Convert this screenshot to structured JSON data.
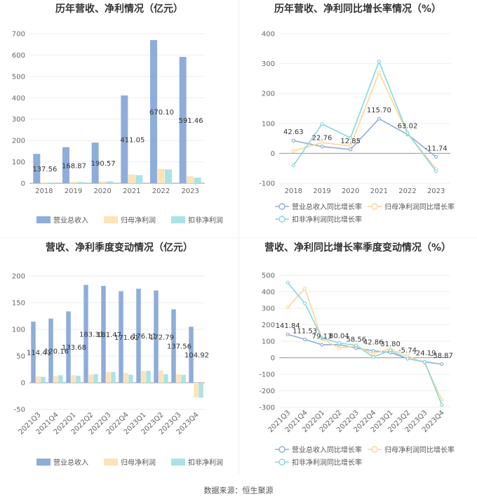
{
  "colors": {
    "rev": "#8eaddb",
    "np": "#fde3b5",
    "dnp": "#a9e3e6",
    "rev_line": "#8eaddb",
    "np_line": "#fcd699",
    "dnp_line": "#86d8dc",
    "grid": "#eeeeee",
    "axis": "#999999"
  },
  "source_label": "数据来源：恒生聚源",
  "chart_data": [
    {
      "type": "bar",
      "title": "历年营收、净利情况（亿元）",
      "categories": [
        "2018",
        "2019",
        "2020",
        "2021",
        "2022",
        "2023"
      ],
      "ylim": [
        0,
        700
      ],
      "yticks": [
        0,
        100,
        200,
        300,
        400,
        500,
        600,
        700
      ],
      "series": [
        {
          "name": "营业总收入",
          "values": [
            137.56,
            168.87,
            190.57,
            411.05,
            670.1,
            591.46
          ],
          "labels": [
            "137.56",
            "168.87",
            "190.57",
            "411.05",
            "670.10",
            "591.46"
          ]
        },
        {
          "name": "归母净利润",
          "values": [
            4,
            7,
            9,
            41,
            68,
            33
          ]
        },
        {
          "name": "扣非净利润",
          "values": [
            4,
            6,
            9,
            38,
            65,
            26
          ]
        }
      ]
    },
    {
      "type": "line",
      "title": "历年营收、净利同比增长率情况（%）",
      "categories": [
        "2018",
        "2019",
        "2020",
        "2021",
        "2022",
        "2023"
      ],
      "ylim": [
        -100,
        400
      ],
      "yticks": [
        -100,
        0,
        100,
        200,
        300,
        400
      ],
      "series": [
        {
          "name": "营业总收入同比增长率",
          "values": [
            42.63,
            22.76,
            12.85,
            115.7,
            63.02,
            -11.74
          ],
          "labels": [
            "42.63",
            "22.76",
            "12.85",
            "115.70",
            "63.02",
            "-11.74"
          ]
        },
        {
          "name": "归母净利润同比增长率",
          "values": [
            8,
            36,
            25,
            270,
            66,
            -52
          ]
        },
        {
          "name": "扣非净利润同比增长率",
          "values": [
            -40,
            98,
            52,
            307,
            68,
            -60
          ]
        }
      ]
    },
    {
      "type": "bar",
      "title": "营收、净利季度变动情况（亿元）",
      "categories": [
        "2021Q3",
        "2021Q4",
        "2022Q1",
        "2022Q2",
        "2022Q3",
        "2022Q4",
        "2023Q1",
        "2023Q2",
        "2023Q3",
        "2023Q4"
      ],
      "ylim": [
        -50,
        200
      ],
      "yticks": [
        -50,
        0,
        50,
        100,
        150,
        200
      ],
      "series": [
        {
          "name": "营业总收入",
          "values": [
            114.41,
            120.16,
            133.68,
            183.31,
            181.47,
            171.61,
            176.11,
            172.79,
            137.56,
            104.92
          ],
          "labels": [
            "114.41",
            "120.16",
            "133.68",
            "183.31",
            "181.47",
            "171.61",
            "176.11",
            "172.79",
            "137.56",
            "104.92"
          ]
        },
        {
          "name": "归母净利润",
          "values": [
            12,
            13,
            14,
            16,
            20,
            18,
            22,
            23,
            16,
            -27
          ]
        },
        {
          "name": "扣非净利润",
          "values": [
            11,
            14,
            13,
            16,
            20,
            15,
            22,
            16,
            15,
            -28
          ]
        }
      ]
    },
    {
      "type": "line",
      "title": "营收、净利同比增长率季度变动情况（%）",
      "categories": [
        "2021Q3",
        "2021Q4",
        "2022Q1",
        "2022Q2",
        "2022Q3",
        "2022Q4",
        "2023Q1",
        "2023Q2",
        "2023Q3",
        "2023Q4"
      ],
      "ylim": [
        -300,
        500
      ],
      "yticks": [
        -300,
        -200,
        -100,
        0,
        100,
        200,
        300,
        400,
        500
      ],
      "series": [
        {
          "name": "营业总收入同比增长率",
          "values": [
            141.84,
            111.53,
            79.13,
            80.04,
            58.56,
            42.86,
            31.8,
            -5.74,
            -24.19,
            -38.87
          ],
          "labels": [
            "141.84",
            "111.53",
            "79.13",
            "80.04",
            "58.56",
            "42.86",
            "31.80",
            "-5.74",
            "-24.19",
            "-38.87"
          ]
        },
        {
          "name": "归母净利润同比增长率",
          "values": [
            305,
            420,
            115,
            60,
            70,
            25,
            55,
            10,
            -30,
            -255
          ]
        },
        {
          "name": "扣非净利润同比增长率",
          "values": [
            455,
            330,
            120,
            90,
            75,
            5,
            45,
            -5,
            -25,
            -285
          ]
        }
      ]
    }
  ]
}
